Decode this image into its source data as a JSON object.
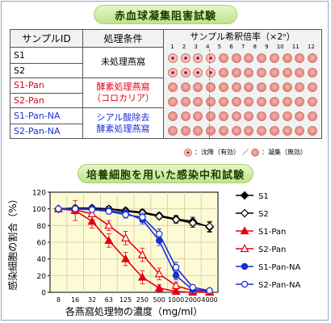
{
  "top_section": {
    "title": "赤血球凝集阻害試験",
    "headers": {
      "sample_id": "サンプルID",
      "condition": "処理条件",
      "dilution": "サンプル希釈倍率（×2ⁿ）"
    },
    "dilution_steps": [
      "1",
      "2",
      "3",
      "4",
      "5",
      "6",
      "7",
      "8",
      "9",
      "10",
      "11",
      "12"
    ],
    "rows": [
      {
        "id": "S1",
        "color": "#000000",
        "settled_through": 4
      },
      {
        "id": "S2",
        "color": "#000000",
        "settled_through": 4
      },
      {
        "id": "S1-Pan",
        "color": "#e0001a",
        "settled_through": 0
      },
      {
        "id": "S2-Pan",
        "color": "#e0001a",
        "settled_through": 0
      },
      {
        "id": "S1-Pan-NA",
        "color": "#1a2fd6",
        "settled_through": 0
      },
      {
        "id": "S2-Pan-NA",
        "color": "#1a2fd6",
        "settled_through": 0
      }
    ],
    "conditions": [
      {
        "lines": [
          "未処理燕窩"
        ],
        "color": "#000000"
      },
      {
        "lines": [
          "酵素処理燕窩",
          "（コロカリア）"
        ],
        "color": "#e0001a"
      },
      {
        "lines": [
          "シアル酸除去",
          "酵素処理燕窩"
        ],
        "color": "#1a2fd6"
      }
    ],
    "legend": {
      "settled": "：沈降（有効）",
      "separator": "／",
      "agglutinated": "：凝集（無効）"
    }
  },
  "chart_data": {
    "type": "line",
    "title": "培養細胞を用いた感染中和試験",
    "xlabel": "各燕窩処理物の濃度（mg/ml）",
    "ylabel": "感染細胞の割合（%）",
    "x": [
      8,
      16,
      32,
      63,
      125,
      250,
      500,
      1000,
      2000,
      4000
    ],
    "x_tick_labels": [
      "8",
      "16",
      "32",
      "63",
      "125",
      "250",
      "500",
      "1000",
      "2000",
      "4000"
    ],
    "yticks": [
      0,
      20,
      40,
      60,
      80,
      100,
      120
    ],
    "ylim": [
      0,
      120
    ],
    "grid": true,
    "legend_position": "right",
    "series": [
      {
        "name": "S1",
        "color": "#000000",
        "marker": "diamond",
        "filled": true,
        "values": [
          100,
          101,
          101,
          100,
          98,
          96,
          92,
          88,
          85,
          78
        ],
        "errors": [
          0,
          3,
          3,
          3,
          3,
          3,
          3,
          4,
          5,
          6
        ]
      },
      {
        "name": "S2",
        "color": "#000000",
        "marker": "diamond",
        "filled": false,
        "values": [
          100,
          101,
          101,
          100,
          97,
          95,
          91,
          87,
          83,
          79
        ],
        "errors": [
          0,
          3,
          3,
          3,
          3,
          3,
          3,
          4,
          5,
          6
        ]
      },
      {
        "name": "S1-Pan",
        "color": "#e60012",
        "marker": "triangle",
        "filled": true,
        "values": [
          100,
          98,
          85,
          62,
          40,
          18,
          5,
          1,
          0,
          0
        ],
        "errors": [
          0,
          12,
          8,
          8,
          8,
          8,
          4,
          2,
          0,
          0
        ]
      },
      {
        "name": "S2-Pan",
        "color": "#e60012",
        "marker": "triangle",
        "filled": false,
        "values": [
          100,
          99,
          94,
          80,
          65,
          45,
          22,
          8,
          2,
          1
        ],
        "errors": [
          0,
          5,
          7,
          6,
          8,
          8,
          7,
          4,
          2,
          1
        ]
      },
      {
        "name": "S1-Pan-NA",
        "color": "#1a2fd6",
        "marker": "circle",
        "filled": true,
        "values": [
          100,
          100,
          100,
          98,
          95,
          87,
          62,
          20,
          3,
          2
        ],
        "errors": [
          0,
          3,
          3,
          3,
          4,
          5,
          6,
          5,
          2,
          1
        ]
      },
      {
        "name": "S2-Pan-NA",
        "color": "#1a2fd6",
        "marker": "circle",
        "filled": false,
        "values": [
          100,
          100,
          99,
          97,
          93,
          90,
          70,
          30,
          6,
          2
        ],
        "errors": [
          0,
          3,
          3,
          3,
          4,
          5,
          6,
          6,
          3,
          1
        ]
      }
    ]
  }
}
